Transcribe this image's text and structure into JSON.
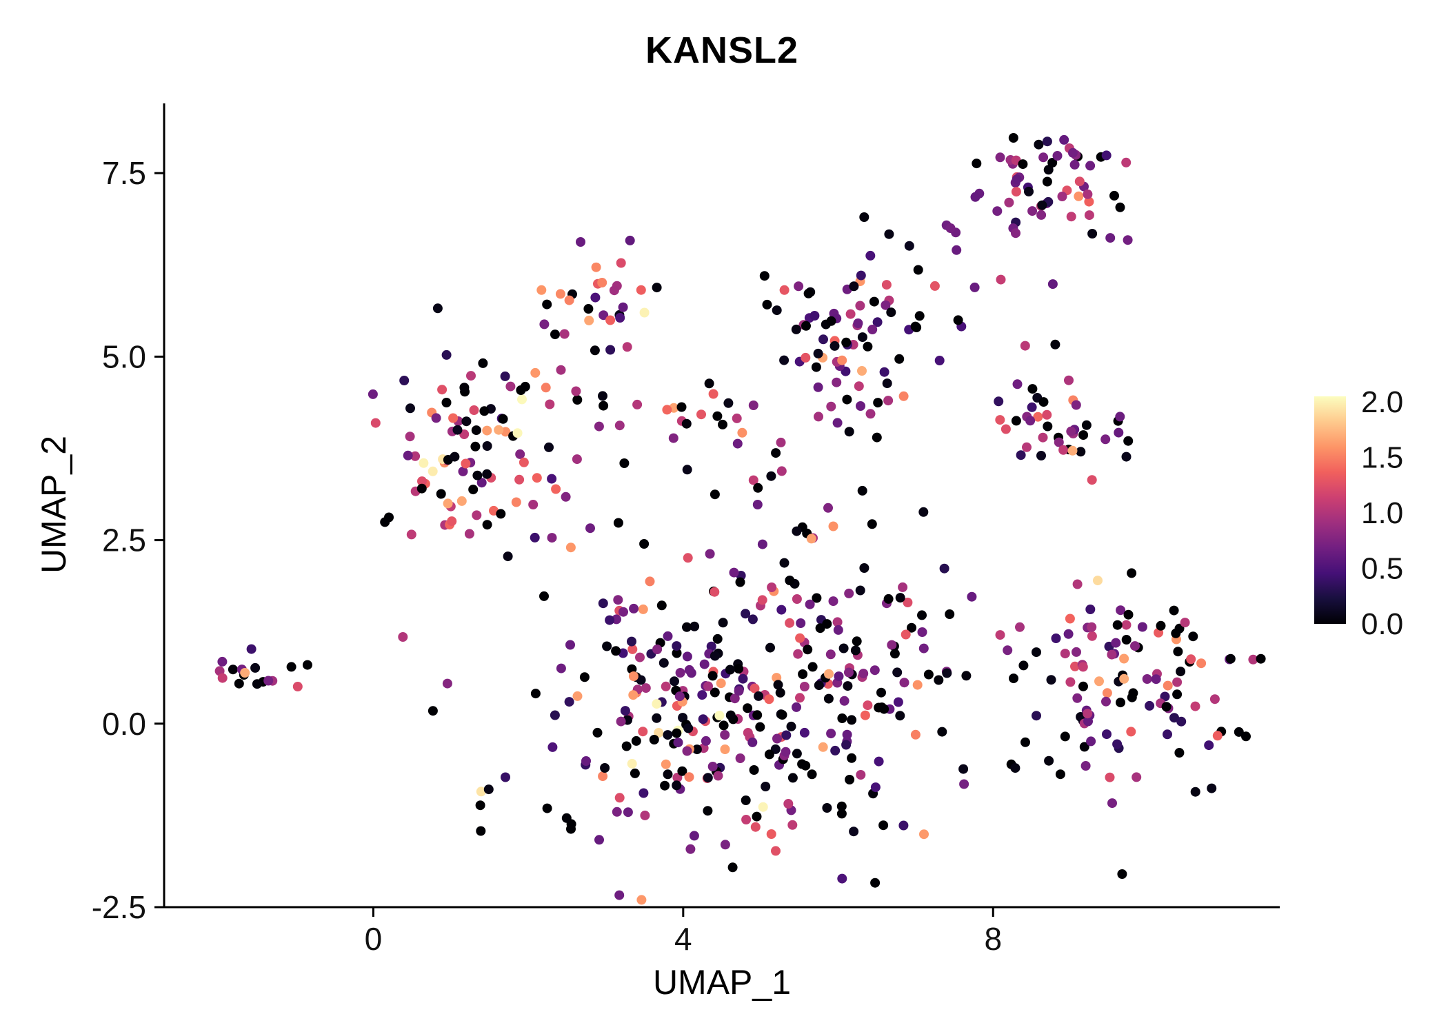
{
  "page": {
    "background": "#ffffff"
  },
  "chart_data": {
    "type": "scatter",
    "title": "KANSL2",
    "xlabel": "UMAP_1",
    "ylabel": "UMAP_2",
    "xlim": [
      -2.7,
      11.7
    ],
    "ylim": [
      -2.5,
      8.45
    ],
    "grid": false,
    "legend_position": "right",
    "point_radius": 7,
    "seed": 1337,
    "x_ticks": [
      {
        "v": 0,
        "label": "0"
      },
      {
        "v": 4,
        "label": "4"
      },
      {
        "v": 8,
        "label": "8"
      }
    ],
    "y_ticks": [
      {
        "v": -2.5,
        "label": "-2.5"
      },
      {
        "v": 0,
        "label": "0.0"
      },
      {
        "v": 2.5,
        "label": "2.5"
      },
      {
        "v": 5,
        "label": "5.0"
      },
      {
        "v": 7.5,
        "label": "7.5"
      }
    ],
    "colorbar": {
      "min": 0.0,
      "max": 2.05,
      "palette_name": "magma",
      "labels": [
        {
          "v": 2.0,
          "label": "2.0"
        },
        {
          "v": 1.5,
          "label": "1.5"
        },
        {
          "v": 1.0,
          "label": "1.0"
        },
        {
          "v": 0.5,
          "label": "0.5"
        },
        {
          "v": 0.0,
          "label": "0.0"
        }
      ],
      "stops": [
        "#000004",
        "#180f3e",
        "#451077",
        "#721f81",
        "#9f2f7f",
        "#cd4071",
        "#f1605d",
        "#fd9567",
        "#feca8d",
        "#fcfdbf"
      ]
    },
    "clusters": [
      {
        "name": "top-right",
        "cx": 8.8,
        "cy": 7.45,
        "sx": 0.55,
        "sy": 0.33,
        "n": 55,
        "values": [
          [
            0,
            0.28
          ],
          [
            0.4,
            0.12
          ],
          [
            0.7,
            0.22
          ],
          [
            1.0,
            0.2
          ],
          [
            1.3,
            0.1
          ],
          [
            1.6,
            0.06
          ],
          [
            2.0,
            0.02
          ]
        ]
      },
      {
        "name": "right-stragglers",
        "cx": 8.3,
        "cy": 6.5,
        "sx": 0.7,
        "sy": 0.45,
        "n": 7,
        "values": [
          [
            0,
            0.3
          ],
          [
            0.7,
            0.4
          ],
          [
            1.0,
            0.3
          ]
        ]
      },
      {
        "name": "upper-middle",
        "cx": 2.95,
        "cy": 5.75,
        "sx": 0.42,
        "sy": 0.33,
        "n": 28,
        "values": [
          [
            0,
            0.38
          ],
          [
            0.4,
            0.08
          ],
          [
            0.7,
            0.15
          ],
          [
            1.0,
            0.12
          ],
          [
            1.3,
            0.12
          ],
          [
            1.6,
            0.12
          ],
          [
            2.0,
            0.03
          ]
        ]
      },
      {
        "name": "upper-center-right",
        "cx": 6.2,
        "cy": 5.3,
        "sx": 0.6,
        "sy": 0.5,
        "n": 75,
        "values": [
          [
            0,
            0.4
          ],
          [
            0.4,
            0.15
          ],
          [
            0.7,
            0.22
          ],
          [
            1.0,
            0.12
          ],
          [
            1.3,
            0.07
          ],
          [
            1.6,
            0.04
          ]
        ]
      },
      {
        "name": "right-mid",
        "cx": 8.75,
        "cy": 4.2,
        "sx": 0.5,
        "sy": 0.4,
        "n": 40,
        "values": [
          [
            0,
            0.35
          ],
          [
            0.4,
            0.12
          ],
          [
            0.7,
            0.2
          ],
          [
            1.0,
            0.15
          ],
          [
            1.3,
            0.1
          ],
          [
            1.6,
            0.08
          ]
        ]
      },
      {
        "name": "left",
        "cx": 1.2,
        "cy": 3.7,
        "sx": 0.55,
        "sy": 0.6,
        "n": 90,
        "values": [
          [
            0,
            0.3
          ],
          [
            0.4,
            0.1
          ],
          [
            0.7,
            0.15
          ],
          [
            1.0,
            0.15
          ],
          [
            1.3,
            0.12
          ],
          [
            1.6,
            0.15
          ],
          [
            2.0,
            0.03
          ]
        ]
      },
      {
        "name": "far-left-small",
        "cx": -1.5,
        "cy": 0.68,
        "sx": 0.3,
        "sy": 0.12,
        "n": 16,
        "values": [
          [
            0,
            0.35
          ],
          [
            0.4,
            0.05
          ],
          [
            0.7,
            0.12
          ],
          [
            1.0,
            0.18
          ],
          [
            1.3,
            0.12
          ],
          [
            1.6,
            0.18
          ]
        ]
      },
      {
        "name": "central",
        "cx": 4.6,
        "cy": 0.3,
        "sx": 1.5,
        "sy": 1.0,
        "n": 330,
        "values": [
          [
            0,
            0.42
          ],
          [
            0.4,
            0.13
          ],
          [
            0.7,
            0.18
          ],
          [
            1.0,
            0.12
          ],
          [
            1.3,
            0.08
          ],
          [
            1.6,
            0.06
          ],
          [
            2.0,
            0.01
          ]
        ]
      },
      {
        "name": "lower-right",
        "cx": 9.7,
        "cy": 0.6,
        "sx": 0.75,
        "sy": 0.8,
        "n": 110,
        "values": [
          [
            0,
            0.4
          ],
          [
            0.4,
            0.12
          ],
          [
            0.7,
            0.18
          ],
          [
            1.0,
            0.12
          ],
          [
            1.3,
            0.08
          ],
          [
            1.6,
            0.08
          ],
          [
            2.0,
            0.02
          ]
        ]
      },
      {
        "name": "bridge-top",
        "cx": 3.8,
        "cy": 4.3,
        "sx": 0.9,
        "sy": 0.25,
        "n": 22,
        "values": [
          [
            0,
            0.35
          ],
          [
            0.7,
            0.25
          ],
          [
            1.0,
            0.25
          ],
          [
            1.3,
            0.1
          ],
          [
            1.6,
            0.05
          ]
        ]
      },
      {
        "name": "mid-sparse",
        "cx": 5.5,
        "cy": 3.2,
        "sx": 1.6,
        "sy": 0.8,
        "n": 32,
        "values": [
          [
            0,
            0.5
          ],
          [
            0.7,
            0.2
          ],
          [
            1.0,
            0.15
          ],
          [
            1.3,
            0.1
          ],
          [
            1.6,
            0.05
          ]
        ]
      }
    ],
    "extra_points": [
      {
        "x": 3.5,
        "y": 5.6,
        "v": 2.0
      },
      {
        "x": 0.65,
        "y": 3.55,
        "v": 2.0
      },
      {
        "x": 9.35,
        "y": 1.95,
        "v": 1.9
      },
      {
        "x": 6.05,
        "y": 4.95,
        "v": 1.55
      },
      {
        "x": 2.55,
        "y": 2.4,
        "v": 1.6
      },
      {
        "x": 7.0,
        "y": -0.15,
        "v": 1.5
      },
      {
        "x": -0.85,
        "y": 0.8,
        "v": 0.0
      },
      {
        "x": 7.45,
        "y": 6.75,
        "v": 0.7
      },
      {
        "x": 8.1,
        "y": 6.05,
        "v": 1.1
      },
      {
        "x": 5.05,
        "y": 6.1,
        "v": 0.0
      }
    ]
  }
}
